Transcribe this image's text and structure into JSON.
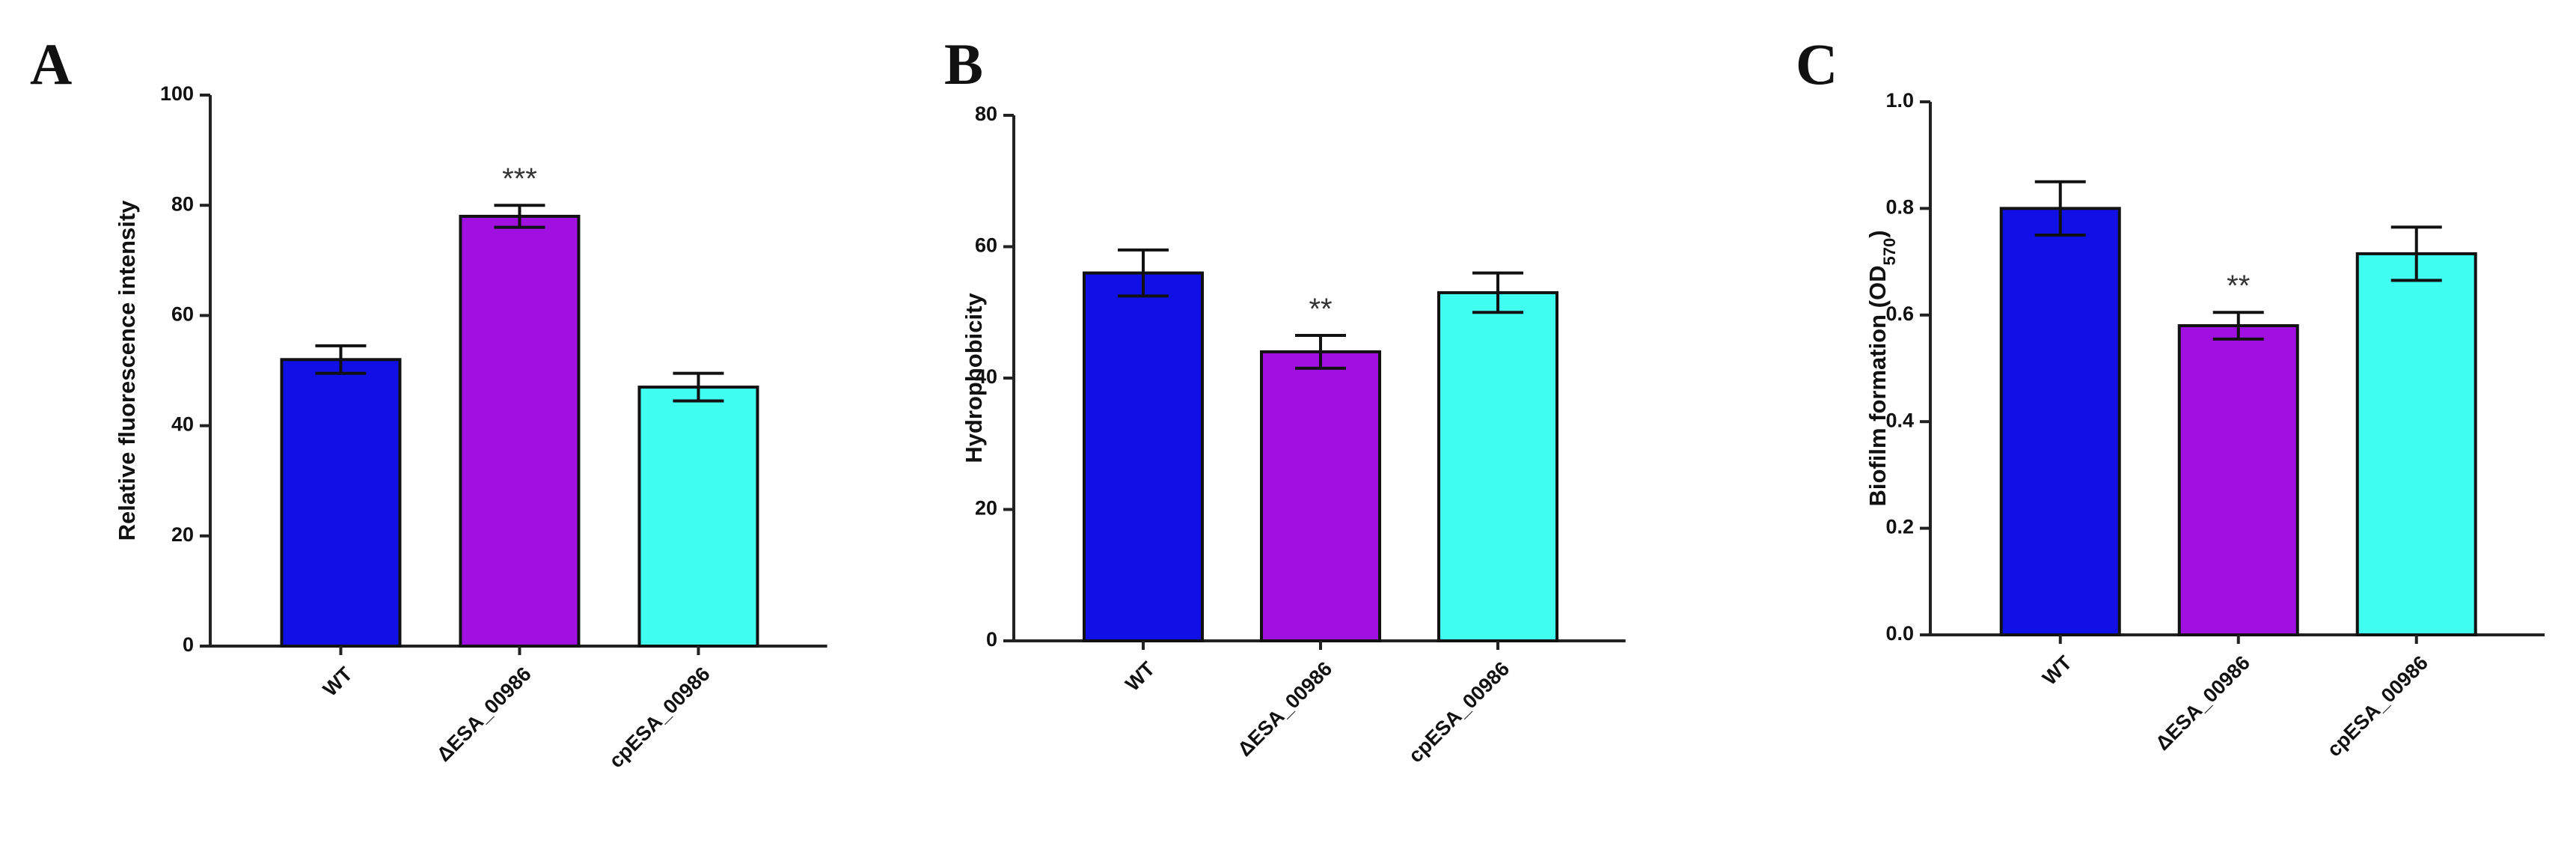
{
  "chart_data": [
    {
      "type": "bar",
      "panel_label": "A",
      "y_label": "Relative fluorescence intensity",
      "categories": [
        "WT",
        "ΔESA_00986",
        "cpESA_00986"
      ],
      "series": [
        {
          "values": [
            52,
            78,
            47
          ],
          "errors": [
            2.5,
            2,
            2.5
          ],
          "colors": [
            "#1010e6",
            "#a010e0",
            "#40fff0"
          ]
        }
      ],
      "annotations": [
        null,
        "***",
        null
      ],
      "ylim": [
        0,
        100
      ],
      "yticks": [
        0,
        20,
        40,
        60,
        80,
        100
      ]
    },
    {
      "type": "bar",
      "panel_label": "B",
      "y_label": "Hydrophobicity",
      "categories": [
        "WT",
        "ΔESA_00986",
        "cpESA_00986"
      ],
      "series": [
        {
          "values": [
            56,
            44,
            53
          ],
          "errors": [
            3.5,
            2.5,
            3
          ],
          "colors": [
            "#1010e6",
            "#a010e0",
            "#40fff0"
          ]
        }
      ],
      "annotations": [
        null,
        "**",
        null
      ],
      "ylim": [
        0,
        80
      ],
      "yticks": [
        0,
        20,
        40,
        60,
        80
      ]
    },
    {
      "type": "bar",
      "panel_label": "C",
      "y_label": [
        {
          "text": "Biofilm formation (OD"
        },
        {
          "text": "570",
          "sub": true
        },
        {
          "text": ")"
        }
      ],
      "categories": [
        "WT",
        "ΔESA_00986",
        "cpESA_00986"
      ],
      "series": [
        {
          "values": [
            0.8,
            0.58,
            0.715
          ],
          "errors": [
            0.05,
            0.025,
            0.05
          ],
          "colors": [
            "#1010e6",
            "#a010e0",
            "#40fff0"
          ]
        }
      ],
      "annotations": [
        null,
        "**",
        null
      ],
      "ylim": [
        0,
        1
      ],
      "yticks": [
        {
          "value": 0,
          "label": "0.0"
        },
        {
          "value": 0.2,
          "label": "0.2"
        },
        {
          "value": 0.4,
          "label": "0.4"
        },
        {
          "value": 0.6,
          "label": "0.6"
        },
        {
          "value": 0.8,
          "label": "0.8"
        },
        {
          "value": 1,
          "label": "1.0"
        }
      ]
    }
  ]
}
